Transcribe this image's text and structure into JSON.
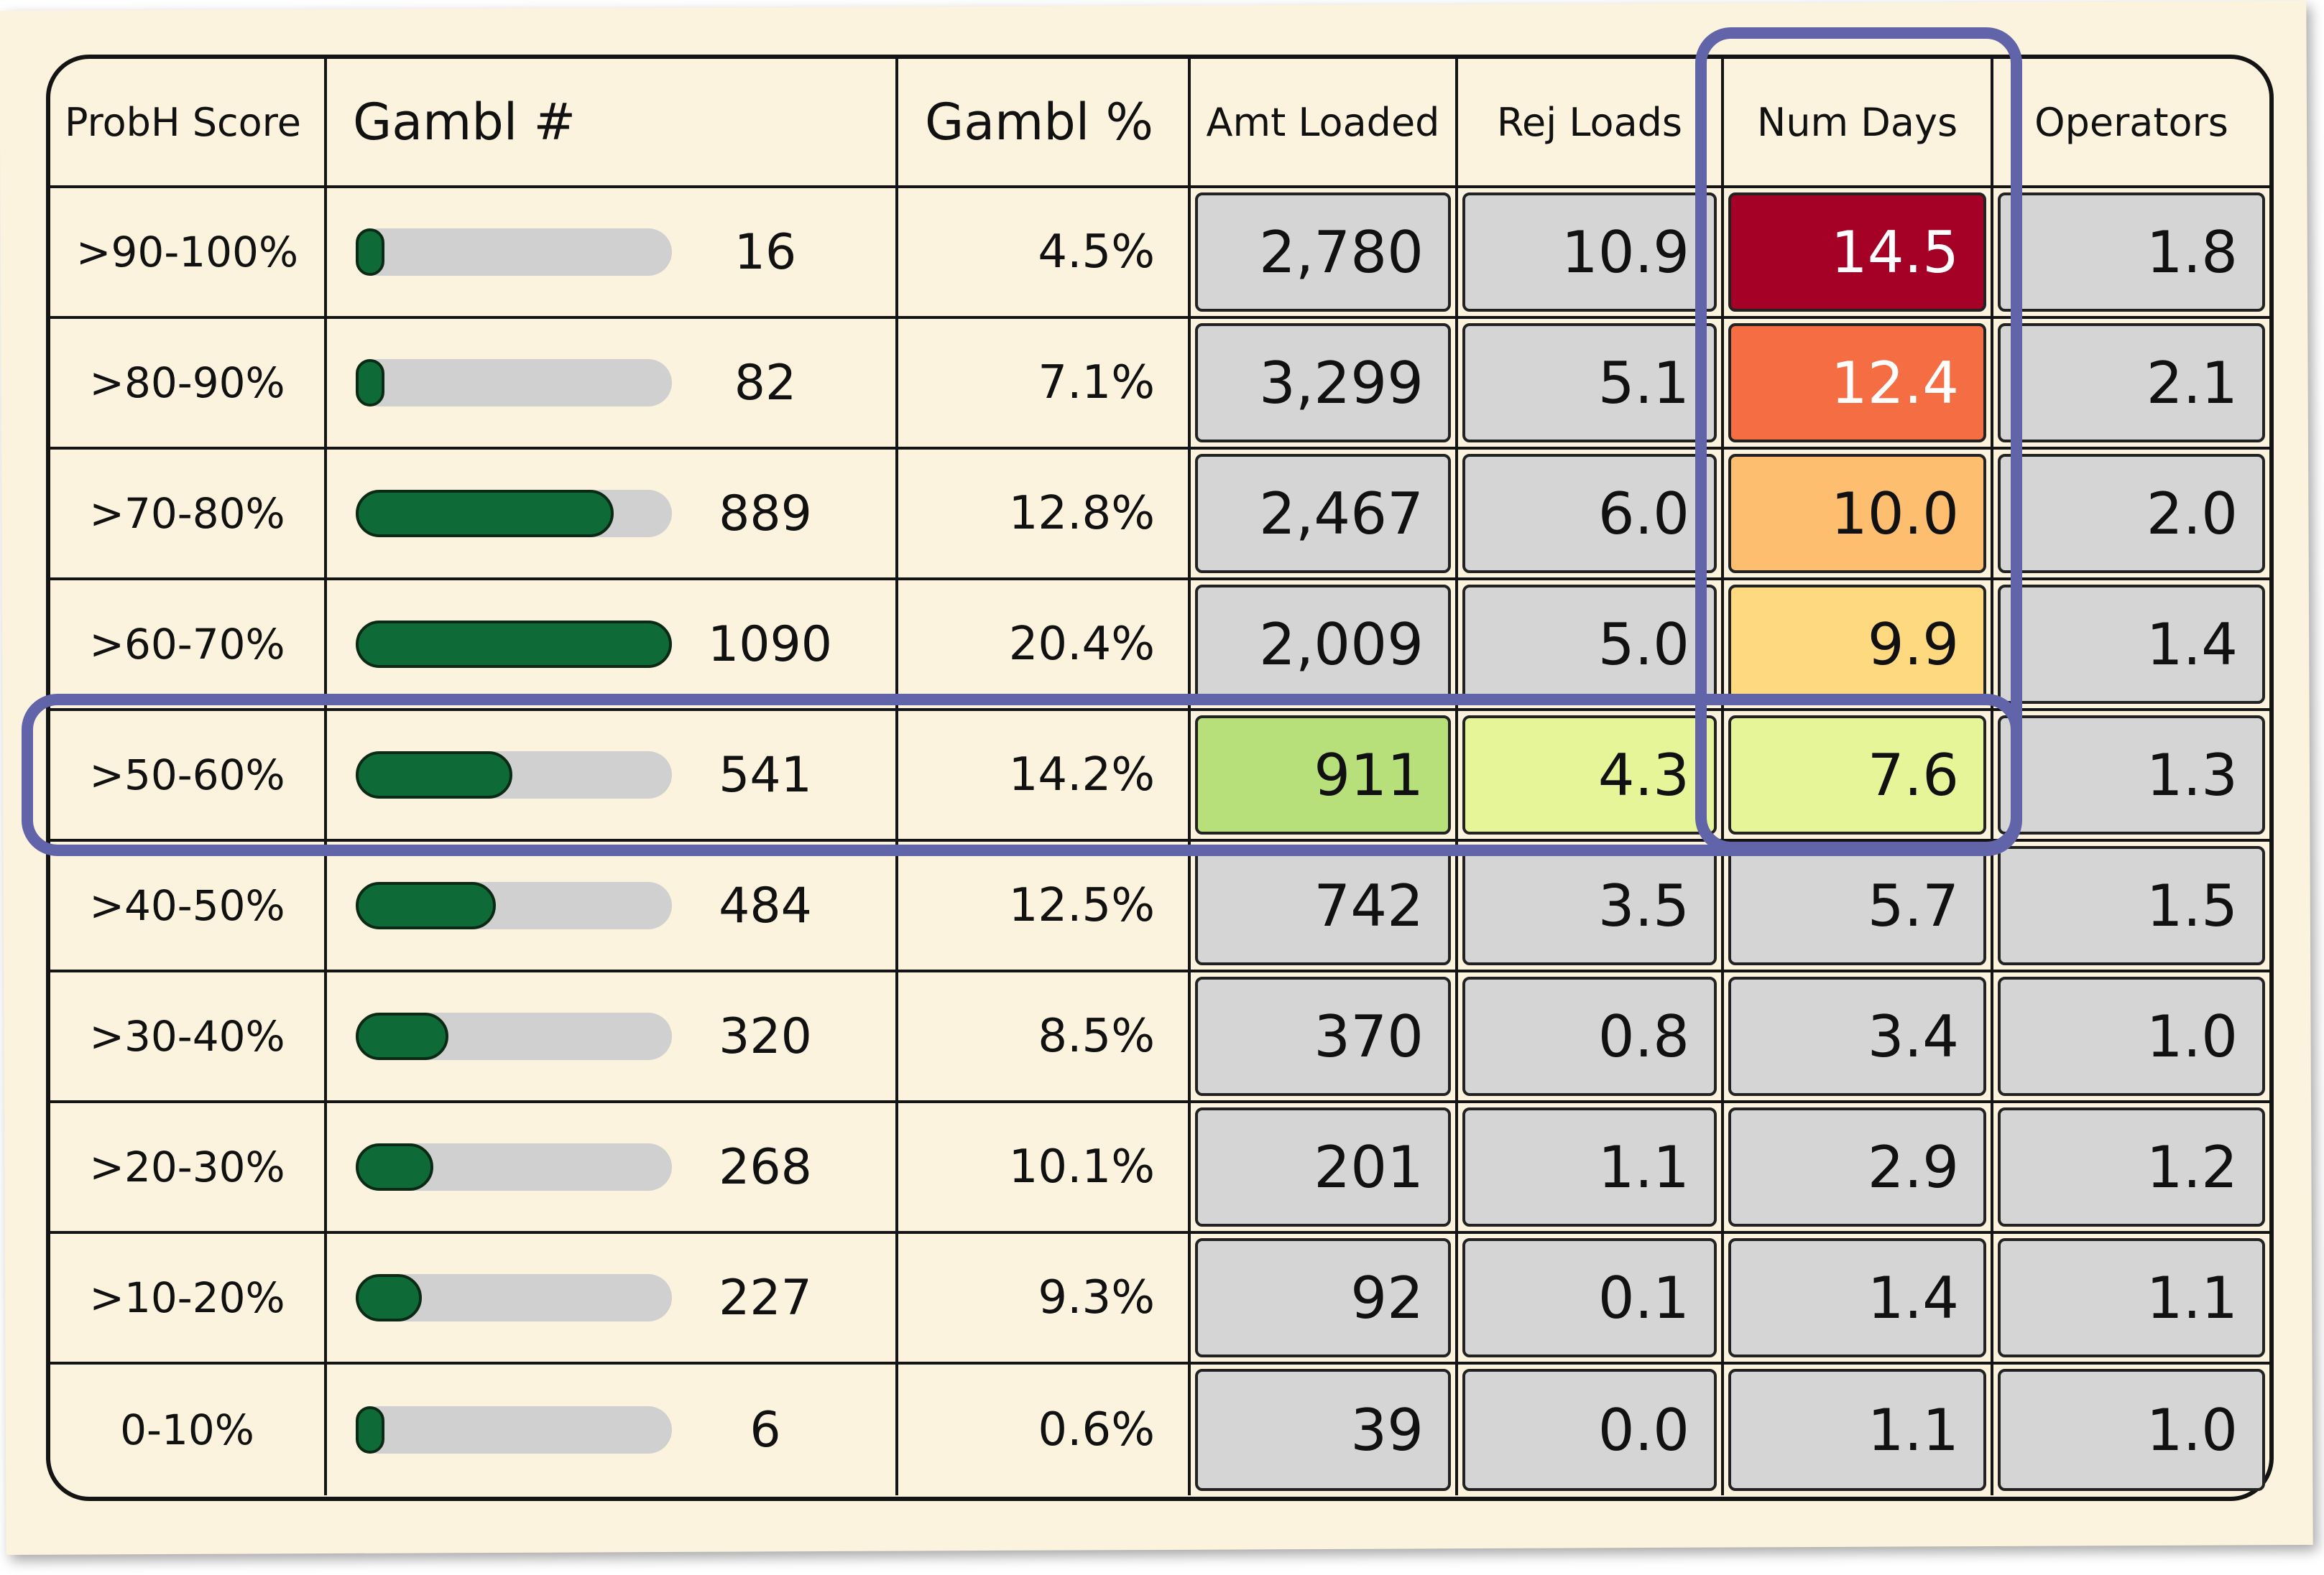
{
  "chart_data": {
    "type": "table",
    "columns": [
      "ProbH Score",
      "Gambl #",
      "Gambl %",
      "Amt Loaded",
      "Rej Loads",
      "Num Days",
      "Operators"
    ],
    "rows": [
      {
        "score": ">90-100%",
        "gambl_count": 16,
        "gambl_count_label": "16",
        "gambl_pct": "4.5%",
        "amt_loaded": "2,780",
        "rej_loads": "10.9",
        "num_days": "14.5",
        "operators": "1.8"
      },
      {
        "score": ">80-90%",
        "gambl_count": 82,
        "gambl_count_label": "82",
        "gambl_pct": "7.1%",
        "amt_loaded": "3,299",
        "rej_loads": "5.1",
        "num_days": "12.4",
        "operators": "2.1"
      },
      {
        "score": ">70-80%",
        "gambl_count": 889,
        "gambl_count_label": "889",
        "gambl_pct": "12.8%",
        "amt_loaded": "2,467",
        "rej_loads": "6.0",
        "num_days": "10.0",
        "operators": "2.0"
      },
      {
        "score": ">60-70%",
        "gambl_count": 1090,
        "gambl_count_label": "1090",
        "gambl_pct": "20.4%",
        "amt_loaded": "2,009",
        "rej_loads": "5.0",
        "num_days": "9.9",
        "operators": "1.4"
      },
      {
        "score": ">50-60%",
        "gambl_count": 541,
        "gambl_count_label": "541",
        "gambl_pct": "14.2%",
        "amt_loaded": "911",
        "rej_loads": "4.3",
        "num_days": "7.6",
        "operators": "1.3"
      },
      {
        "score": ">40-50%",
        "gambl_count": 484,
        "gambl_count_label": "484",
        "gambl_pct": "12.5%",
        "amt_loaded": "742",
        "rej_loads": "3.5",
        "num_days": "5.7",
        "operators": "1.5"
      },
      {
        "score": ">30-40%",
        "gambl_count": 320,
        "gambl_count_label": "320",
        "gambl_pct": "8.5%",
        "amt_loaded": "370",
        "rej_loads": "0.8",
        "num_days": "3.4",
        "operators": "1.0"
      },
      {
        "score": ">20-30%",
        "gambl_count": 268,
        "gambl_count_label": "268",
        "gambl_pct": "10.1%",
        "amt_loaded": "201",
        "rej_loads": "1.1",
        "num_days": "2.9",
        "operators": "1.2"
      },
      {
        "score": ">10-20%",
        "gambl_count": 227,
        "gambl_count_label": "227",
        "gambl_pct": "9.3%",
        "amt_loaded": "92",
        "rej_loads": "0.1",
        "num_days": "1.4",
        "operators": "1.1"
      },
      {
        "score": "0-10%",
        "gambl_count": 6,
        "gambl_count_label": "6",
        "gambl_pct": "0.6%",
        "amt_loaded": "39",
        "rej_loads": "0.0",
        "num_days": "1.1",
        "operators": "1.0"
      }
    ],
    "bar_max": 1090,
    "cell_colors": {
      "default": "#d5d5d6",
      "num_days": [
        "#a50026",
        "#f46d43",
        "#fdbf6f",
        "#fed980",
        "#e6f598",
        null,
        null,
        null,
        null,
        null
      ],
      "amt_loaded": [
        null,
        null,
        null,
        null,
        "#b8e07a",
        null,
        null,
        null,
        null,
        null
      ],
      "rej_loads": [
        null,
        null,
        null,
        null,
        "#e6f598",
        null,
        null,
        null,
        null,
        null
      ]
    },
    "light_text_cells": {
      "num_days": [
        0,
        1
      ]
    },
    "highlight_color": "#6164a8",
    "bar_color": "#0e6b37",
    "bar_track_color": "#d0d0d0"
  }
}
